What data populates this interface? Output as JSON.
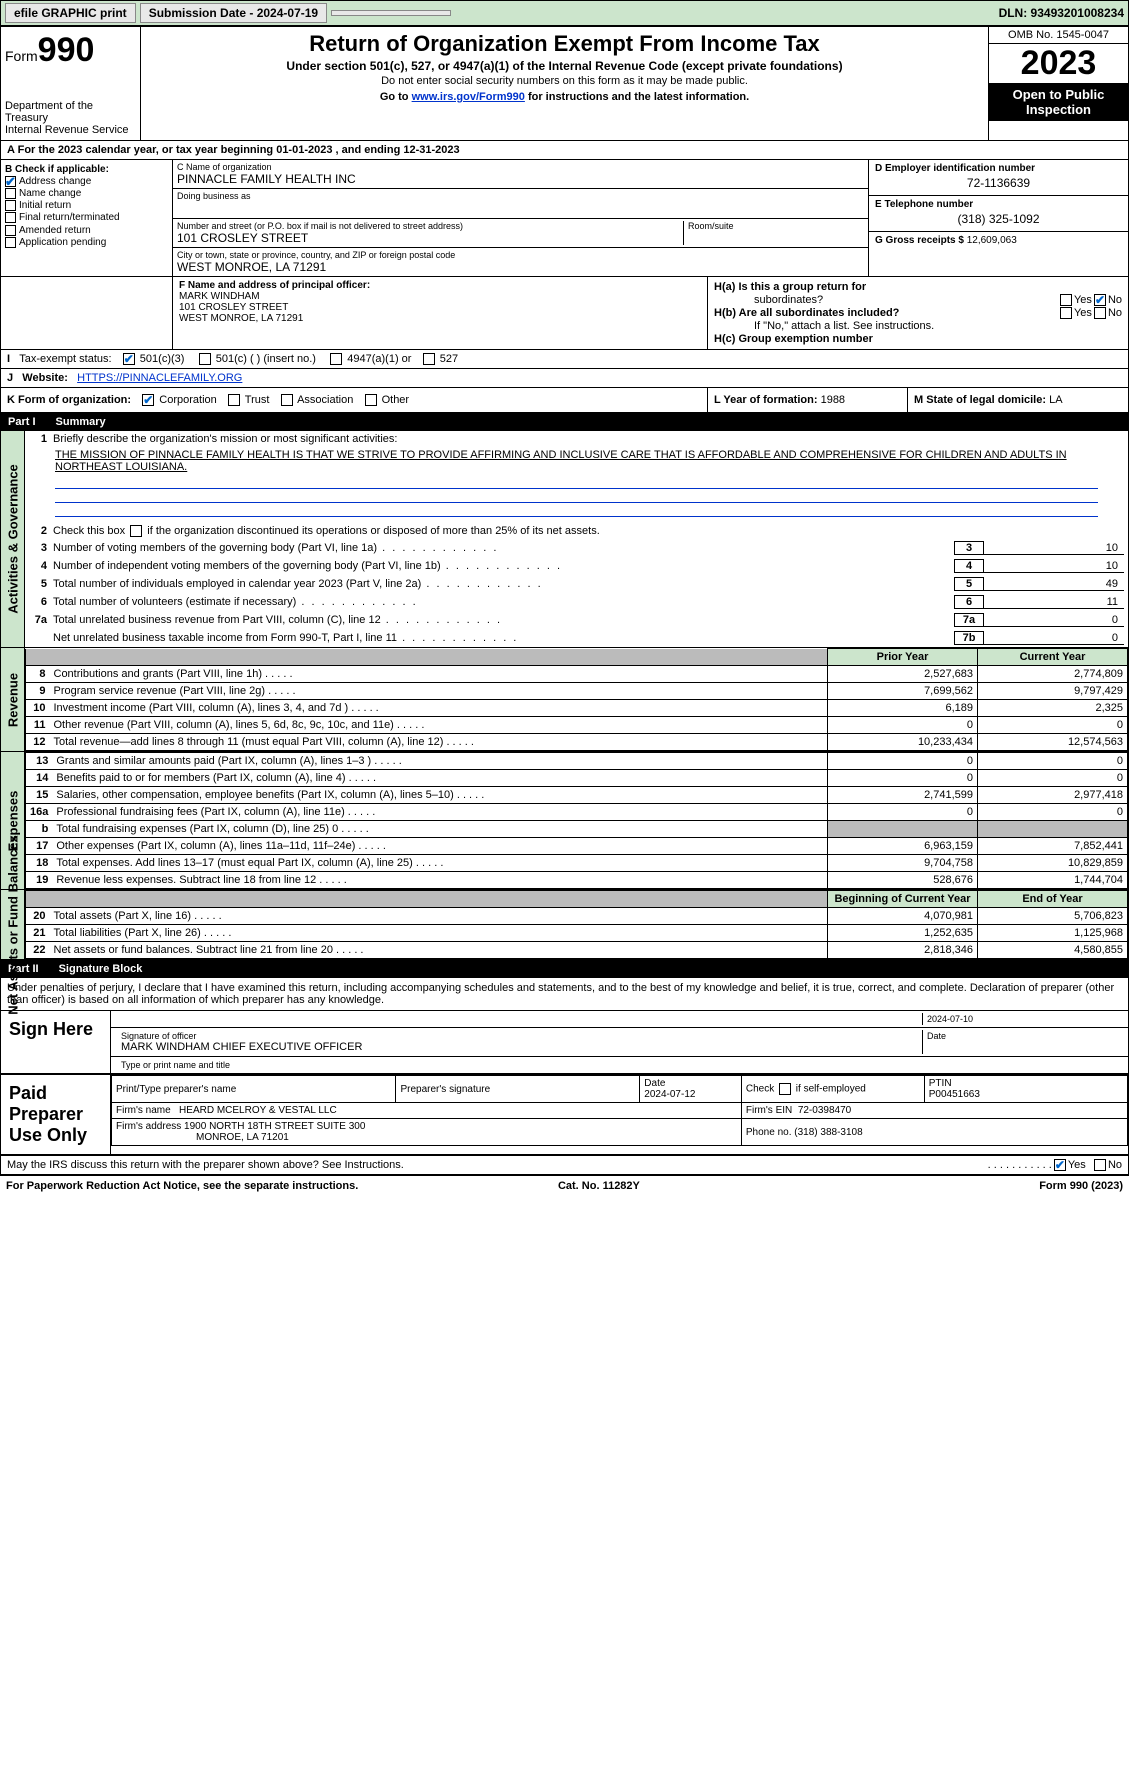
{
  "topbar": {
    "efile": "efile GRAPHIC print",
    "submission_label": "Submission Date - 2024-07-19",
    "dln": "DLN: 93493201008234"
  },
  "header": {
    "form_label": "Form",
    "form_no": "990",
    "dept": "Department of the Treasury",
    "irs": "Internal Revenue Service",
    "title": "Return of Organization Exempt From Income Tax",
    "section": "Under section 501(c), 527, or 4947(a)(1) of the Internal Revenue Code (except private foundations)",
    "ssn_note": "Do not enter social security numbers on this form as it may be made public.",
    "goto_pre": "Go to ",
    "goto_link": "www.irs.gov/Form990",
    "goto_post": " for instructions and the latest information.",
    "omb": "OMB No. 1545-0047",
    "year": "2023",
    "open": "Open to Public Inspection"
  },
  "A": {
    "text": "For the 2023 calendar year, or tax year beginning 01-01-2023   , and ending 12-31-2023"
  },
  "B": {
    "label": "B Check if applicable:",
    "items": [
      "Address change",
      "Name change",
      "Initial return",
      "Final return/terminated",
      "Amended return",
      "Application pending"
    ],
    "checked": [
      true,
      false,
      false,
      false,
      false,
      false
    ]
  },
  "C": {
    "name_lbl": "C Name of organization",
    "name": "PINNACLE FAMILY HEALTH INC",
    "dba_lbl": "Doing business as",
    "dba": "",
    "street_lbl": "Number and street (or P.O. box if mail is not delivered to street address)",
    "street": "101 CROSLEY STREET",
    "room_lbl": "Room/suite",
    "room": "",
    "city_lbl": "City or town, state or province, country, and ZIP or foreign postal code",
    "city": "WEST MONROE, LA  71291"
  },
  "D": {
    "lbl": "D Employer identification number",
    "val": "72-1136639"
  },
  "E": {
    "lbl": "E Telephone number",
    "val": "(318) 325-1092"
  },
  "G": {
    "lbl": "G Gross receipts $",
    "val": "12,609,063"
  },
  "F": {
    "lbl": "F  Name and address of principal officer:",
    "name": "MARK WINDHAM",
    "street": "101 CROSLEY STREET",
    "city": "WEST MONROE, LA  71291"
  },
  "H": {
    "a": "H(a)  Is this a group return for",
    "a2": "subordinates?",
    "b": "H(b)  Are all subordinates included?",
    "b_note": "If \"No,\" attach a list. See instructions.",
    "c": "H(c)  Group exemption number ",
    "yes": "Yes",
    "no": "No",
    "a_no_checked": true
  },
  "I": {
    "lbl": "Tax-exempt status:",
    "opt1": "501(c)(3)",
    "opt2": "501(c) (  ) (insert no.)",
    "opt3": "4947(a)(1) or",
    "opt4": "527",
    "opt1_checked": true
  },
  "J": {
    "lbl": "Website: ",
    "val": "HTTPS://PINNACLEFAMILY.ORG"
  },
  "K": {
    "lbl": "K Form of organization:",
    "corp": "Corporation",
    "trust": "Trust",
    "assoc": "Association",
    "other": "Other",
    "corp_checked": true
  },
  "L": {
    "lbl": "L Year of formation:",
    "val": "1988"
  },
  "M": {
    "lbl": "M State of legal domicile:",
    "val": "LA"
  },
  "partI": {
    "num": "Part I",
    "title": "Summary"
  },
  "summary": {
    "l1_lbl": "Briefly describe the organization's mission or most significant activities:",
    "mission": "THE MISSION OF PINNACLE FAMILY HEALTH IS THAT WE STRIVE TO PROVIDE AFFIRMING AND INCLUSIVE CARE THAT IS AFFORDABLE AND COMPREHENSIVE FOR CHILDREN AND ADULTS IN NORTHEAST LOUISIANA.",
    "l2": "Check this box      if the organization discontinued its operations or disposed of more than 25% of its net assets.",
    "l3": "Number of voting members of the governing body (Part VI, line 1a)",
    "l4": "Number of independent voting members of the governing body (Part VI, line 1b)",
    "l5": "Total number of individuals employed in calendar year 2023 (Part V, line 2a)",
    "l6": "Total number of volunteers (estimate if necessary)",
    "l7a": "Total unrelated business revenue from Part VIII, column (C), line 12",
    "l7b": "Net unrelated business taxable income from Form 990-T, Part I, line 11",
    "v3": "10",
    "v4": "10",
    "v5": "49",
    "v6": "11",
    "v7a": "0",
    "v7b": "0"
  },
  "rev": {
    "hdr_prior": "Prior Year",
    "hdr_curr": "Current Year",
    "rows": [
      {
        "n": "8",
        "t": "Contributions and grants (Part VIII, line 1h)",
        "p": "2,527,683",
        "c": "2,774,809"
      },
      {
        "n": "9",
        "t": "Program service revenue (Part VIII, line 2g)",
        "p": "7,699,562",
        "c": "9,797,429"
      },
      {
        "n": "10",
        "t": "Investment income (Part VIII, column (A), lines 3, 4, and 7d )",
        "p": "6,189",
        "c": "2,325"
      },
      {
        "n": "11",
        "t": "Other revenue (Part VIII, column (A), lines 5, 6d, 8c, 9c, 10c, and 11e)",
        "p": "0",
        "c": "0"
      },
      {
        "n": "12",
        "t": "Total revenue—add lines 8 through 11 (must equal Part VIII, column (A), line 12)",
        "p": "10,233,434",
        "c": "12,574,563"
      }
    ]
  },
  "exp": {
    "rows": [
      {
        "n": "13",
        "t": "Grants and similar amounts paid (Part IX, column (A), lines 1–3 )",
        "p": "0",
        "c": "0"
      },
      {
        "n": "14",
        "t": "Benefits paid to or for members (Part IX, column (A), line 4)",
        "p": "0",
        "c": "0"
      },
      {
        "n": "15",
        "t": "Salaries, other compensation, employee benefits (Part IX, column (A), lines 5–10)",
        "p": "2,741,599",
        "c": "2,977,418"
      },
      {
        "n": "16a",
        "t": "Professional fundraising fees (Part IX, column (A), line 11e)",
        "p": "0",
        "c": "0"
      },
      {
        "n": "b",
        "t": "Total fundraising expenses (Part IX, column (D), line 25) 0",
        "p": "GREY",
        "c": "GREY"
      },
      {
        "n": "17",
        "t": "Other expenses (Part IX, column (A), lines 11a–11d, 11f–24e)",
        "p": "6,963,159",
        "c": "7,852,441"
      },
      {
        "n": "18",
        "t": "Total expenses. Add lines 13–17 (must equal Part IX, column (A), line 25)",
        "p": "9,704,758",
        "c": "10,829,859"
      },
      {
        "n": "19",
        "t": "Revenue less expenses. Subtract line 18 from line 12",
        "p": "528,676",
        "c": "1,744,704"
      }
    ]
  },
  "net": {
    "hdr_beg": "Beginning of Current Year",
    "hdr_end": "End of Year",
    "rows": [
      {
        "n": "20",
        "t": "Total assets (Part X, line 16)",
        "p": "4,070,981",
        "c": "5,706,823"
      },
      {
        "n": "21",
        "t": "Total liabilities (Part X, line 26)",
        "p": "1,252,635",
        "c": "1,125,968"
      },
      {
        "n": "22",
        "t": "Net assets or fund balances. Subtract line 21 from line 20",
        "p": "2,818,346",
        "c": "4,580,855"
      }
    ]
  },
  "vtabs": {
    "ag": "Activities & Governance",
    "rev": "Revenue",
    "exp": "Expenses",
    "net": "Net Assets or Fund Balances"
  },
  "partII": {
    "num": "Part II",
    "title": "Signature Block"
  },
  "sig": {
    "intro": "Under penalties of perjury, I declare that I have examined this return, including accompanying schedules and statements, and to the best of my knowledge and belief, it is true, correct, and complete. Declaration of preparer (other than officer) is based on all information of which preparer has any knowledge.",
    "sign_here": "Sign Here",
    "date": "2024-07-10",
    "sig_lbl": "Signature of officer",
    "officer": "MARK WINDHAM  CHIEF EXECUTIVE OFFICER",
    "type_lbl": "Type or print name and title",
    "date_lbl": "Date",
    "paid": "Paid Preparer Use Only",
    "prep_name_lbl": "Print/Type preparer's name",
    "prep_sig_lbl": "Preparer's signature",
    "prep_date_lbl": "Date",
    "prep_date": "2024-07-12",
    "self_lbl": "Check        if self-employed",
    "ptin_lbl": "PTIN",
    "ptin": "P00451663",
    "firm_name_lbl": "Firm's name ",
    "firm_name": "HEARD MCELROY & VESTAL LLC",
    "firm_ein_lbl": "Firm's EIN ",
    "firm_ein": "72-0398470",
    "firm_addr_lbl": "Firm's address ",
    "firm_addr1": "1900 NORTH 18TH STREET SUITE 300",
    "firm_addr2": "MONROE, LA  71201",
    "phone_lbl": "Phone no.",
    "phone": "(318) 388-3108"
  },
  "discuss": {
    "q": "May the IRS discuss this return with the preparer shown above? See Instructions.",
    "yes": "Yes",
    "no": "No",
    "yes_checked": true
  },
  "footer": {
    "l": "For Paperwork Reduction Act Notice, see the separate instructions.",
    "m": "Cat. No. 11282Y",
    "r": "Form 990 (2023)"
  }
}
